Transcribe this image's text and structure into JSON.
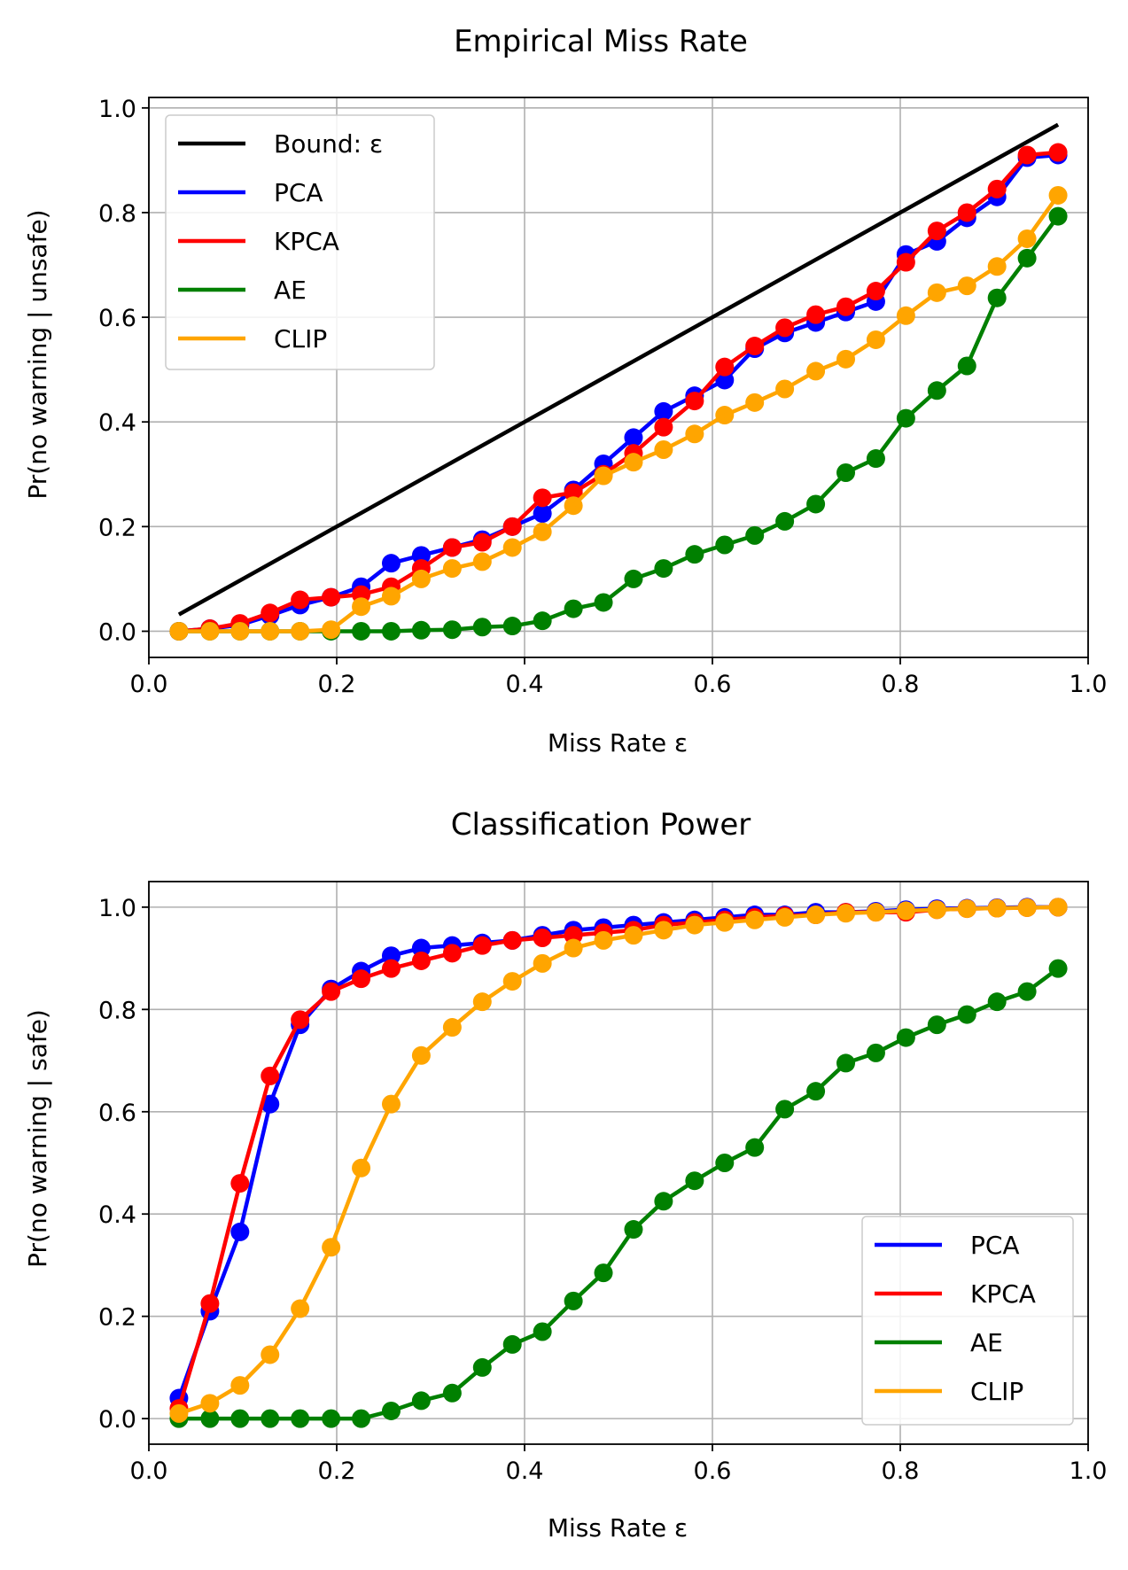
{
  "chart_data": [
    {
      "type": "line",
      "title": "Empirical Miss Rate",
      "xlabel": "Miss Rate ε",
      "ylabel": "Pr(no warning | unsafe)",
      "xlim": [
        0.0,
        1.0
      ],
      "ylim": [
        -0.05,
        1.02
      ],
      "xticks": [
        "0.0",
        "0.2",
        "0.4",
        "0.6",
        "0.8",
        "1.0"
      ],
      "yticks": [
        "0.0",
        "0.2",
        "0.4",
        "0.6",
        "0.8",
        "1.0"
      ],
      "grid": true,
      "legend_position": "top-left",
      "x": [
        0.032,
        0.065,
        0.097,
        0.129,
        0.161,
        0.194,
        0.226,
        0.258,
        0.29,
        0.323,
        0.355,
        0.387,
        0.419,
        0.452,
        0.484,
        0.516,
        0.548,
        0.581,
        0.613,
        0.645,
        0.677,
        0.71,
        0.742,
        0.774,
        0.806,
        0.839,
        0.871,
        0.903,
        0.935,
        0.968
      ],
      "bound": {
        "name": "Bound: ε",
        "color": "#000000",
        "x": [
          0.032,
          0.968
        ],
        "y": [
          0.032,
          0.968
        ]
      },
      "series": [
        {
          "name": "PCA",
          "color": "#0000ff",
          "markers": true,
          "values": [
            0.0,
            0.005,
            0.012,
            0.03,
            0.05,
            0.065,
            0.085,
            0.13,
            0.145,
            0.16,
            0.175,
            0.2,
            0.225,
            0.27,
            0.32,
            0.37,
            0.42,
            0.45,
            0.48,
            0.54,
            0.57,
            0.59,
            0.61,
            0.63,
            0.72,
            0.745,
            0.79,
            0.83,
            0.905,
            0.91
          ]
        },
        {
          "name": "KPCA",
          "color": "#ff0000",
          "markers": true,
          "values": [
            0.0,
            0.005,
            0.015,
            0.035,
            0.06,
            0.065,
            0.07,
            0.085,
            0.12,
            0.16,
            0.17,
            0.2,
            0.255,
            0.265,
            0.3,
            0.34,
            0.39,
            0.44,
            0.505,
            0.545,
            0.58,
            0.605,
            0.62,
            0.65,
            0.705,
            0.765,
            0.8,
            0.845,
            0.91,
            0.915
          ]
        },
        {
          "name": "AE",
          "color": "#008000",
          "markers": true,
          "values": [
            0.0,
            0.0,
            0.0,
            0.0,
            0.0,
            0.0,
            0.0,
            0.0,
            0.002,
            0.003,
            0.008,
            0.01,
            0.02,
            0.043,
            0.055,
            0.1,
            0.12,
            0.147,
            0.165,
            0.183,
            0.21,
            0.243,
            0.303,
            0.33,
            0.407,
            0.46,
            0.507,
            0.637,
            0.713,
            0.793
          ]
        },
        {
          "name": "CLIP",
          "color": "#ffa500",
          "markers": true,
          "values": [
            0.0,
            0.0,
            0.0,
            0.0,
            0.0,
            0.003,
            0.047,
            0.067,
            0.1,
            0.12,
            0.133,
            0.16,
            0.19,
            0.24,
            0.297,
            0.323,
            0.347,
            0.377,
            0.413,
            0.437,
            0.463,
            0.497,
            0.52,
            0.557,
            0.603,
            0.647,
            0.66,
            0.697,
            0.75,
            0.833
          ]
        }
      ]
    },
    {
      "type": "line",
      "title": "Classification Power",
      "xlabel": "Miss Rate ε",
      "ylabel": "Pr(no warning | safe)",
      "xlim": [
        0.0,
        1.0
      ],
      "ylim": [
        -0.05,
        1.05
      ],
      "xticks": [
        "0.0",
        "0.2",
        "0.4",
        "0.6",
        "0.8",
        "1.0"
      ],
      "yticks": [
        "0.0",
        "0.2",
        "0.4",
        "0.6",
        "0.8",
        "1.0"
      ],
      "grid": true,
      "legend_position": "bottom-right",
      "x": [
        0.032,
        0.065,
        0.097,
        0.129,
        0.161,
        0.194,
        0.226,
        0.258,
        0.29,
        0.323,
        0.355,
        0.387,
        0.419,
        0.452,
        0.484,
        0.516,
        0.548,
        0.581,
        0.613,
        0.645,
        0.677,
        0.71,
        0.742,
        0.774,
        0.806,
        0.839,
        0.871,
        0.903,
        0.935,
        0.968
      ],
      "series": [
        {
          "name": "PCA",
          "color": "#0000ff",
          "markers": true,
          "values": [
            0.04,
            0.21,
            0.365,
            0.615,
            0.77,
            0.84,
            0.875,
            0.905,
            0.92,
            0.925,
            0.93,
            0.935,
            0.945,
            0.955,
            0.96,
            0.965,
            0.97,
            0.975,
            0.98,
            0.985,
            0.985,
            0.99,
            0.99,
            0.992,
            0.995,
            0.997,
            0.998,
            0.999,
            1.0,
            1.0
          ]
        },
        {
          "name": "KPCA",
          "color": "#ff0000",
          "markers": true,
          "values": [
            0.02,
            0.225,
            0.46,
            0.67,
            0.78,
            0.835,
            0.86,
            0.88,
            0.895,
            0.91,
            0.925,
            0.935,
            0.94,
            0.945,
            0.95,
            0.955,
            0.965,
            0.97,
            0.975,
            0.98,
            0.983,
            0.985,
            0.99,
            0.99,
            0.99,
            0.995,
            0.997,
            0.998,
            0.999,
            1.0
          ]
        },
        {
          "name": "AE",
          "color": "#008000",
          "markers": true,
          "values": [
            0.0,
            0.0,
            0.0,
            0.0,
            0.0,
            0.0,
            0.0,
            0.015,
            0.035,
            0.05,
            0.1,
            0.145,
            0.17,
            0.23,
            0.285,
            0.37,
            0.425,
            0.465,
            0.5,
            0.53,
            0.605,
            0.64,
            0.695,
            0.715,
            0.745,
            0.77,
            0.79,
            0.815,
            0.835,
            0.88
          ]
        },
        {
          "name": "CLIP",
          "color": "#ffa500",
          "markers": true,
          "values": [
            0.01,
            0.03,
            0.065,
            0.125,
            0.215,
            0.335,
            0.49,
            0.615,
            0.71,
            0.765,
            0.815,
            0.855,
            0.89,
            0.92,
            0.935,
            0.945,
            0.955,
            0.965,
            0.97,
            0.975,
            0.98,
            0.985,
            0.988,
            0.99,
            0.993,
            0.995,
            0.997,
            0.998,
            0.999,
            1.0
          ]
        }
      ]
    }
  ]
}
